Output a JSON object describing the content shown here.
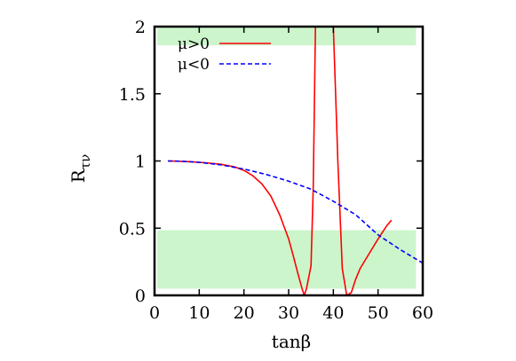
{
  "chart_data": {
    "type": "line",
    "title": "",
    "xlabel": "tanβ",
    "ylabel_main": "R",
    "ylabel_sub": "τν",
    "xlim": [
      0,
      60
    ],
    "ylim": [
      0,
      2
    ],
    "x_ticks": [
      0,
      10,
      20,
      30,
      40,
      50,
      60
    ],
    "y_ticks": [
      0,
      0.5,
      1,
      1.5,
      2
    ],
    "y_tick_labels": [
      "0",
      "0.5",
      "1",
      "1.5",
      "2"
    ],
    "grid": false,
    "legend_position": "top-left",
    "bands": [
      {
        "x": [
          0,
          58.5
        ],
        "y": [
          1.86,
          2.0
        ],
        "color": "#ccf5cc"
      },
      {
        "x": [
          0,
          58.5
        ],
        "y": [
          0.05,
          0.485
        ],
        "color": "#ccf5cc"
      }
    ],
    "series": [
      {
        "name": "μ>0",
        "color": "#ff0000",
        "style": "solid",
        "points": [
          [
            3,
            1.0
          ],
          [
            5,
            0.999
          ],
          [
            8,
            0.995
          ],
          [
            10,
            0.99
          ],
          [
            12,
            0.985
          ],
          [
            15,
            0.975
          ],
          [
            18,
            0.955
          ],
          [
            20,
            0.93
          ],
          [
            22,
            0.89
          ],
          [
            24,
            0.83
          ],
          [
            26,
            0.74
          ],
          [
            28,
            0.6
          ],
          [
            30,
            0.42
          ],
          [
            31,
            0.3
          ],
          [
            32,
            0.17
          ],
          [
            33,
            0.05
          ],
          [
            33.5,
            0.0
          ],
          [
            34,
            0.05
          ],
          [
            35,
            0.22
          ],
          [
            35.5,
            0.8
          ],
          [
            36,
            2.0
          ],
          [
            40,
            2.0
          ],
          [
            40.5,
            1.5
          ],
          [
            41,
            1.0
          ],
          [
            42,
            0.2
          ],
          [
            43,
            0.0
          ],
          [
            44,
            0.02
          ],
          [
            45,
            0.12
          ],
          [
            46,
            0.2
          ],
          [
            48,
            0.31
          ],
          [
            50,
            0.42
          ],
          [
            52,
            0.52
          ],
          [
            53,
            0.56
          ]
        ]
      },
      {
        "name": "μ<0",
        "color": "#0000ff",
        "style": "dashed",
        "points": [
          [
            3,
            1.0
          ],
          [
            6,
            0.998
          ],
          [
            10,
            0.99
          ],
          [
            15,
            0.97
          ],
          [
            20,
            0.94
          ],
          [
            25,
            0.9
          ],
          [
            30,
            0.85
          ],
          [
            35,
            0.79
          ],
          [
            40,
            0.7
          ],
          [
            45,
            0.6
          ],
          [
            50,
            0.45
          ],
          [
            55,
            0.34
          ],
          [
            60,
            0.24
          ]
        ]
      }
    ]
  }
}
